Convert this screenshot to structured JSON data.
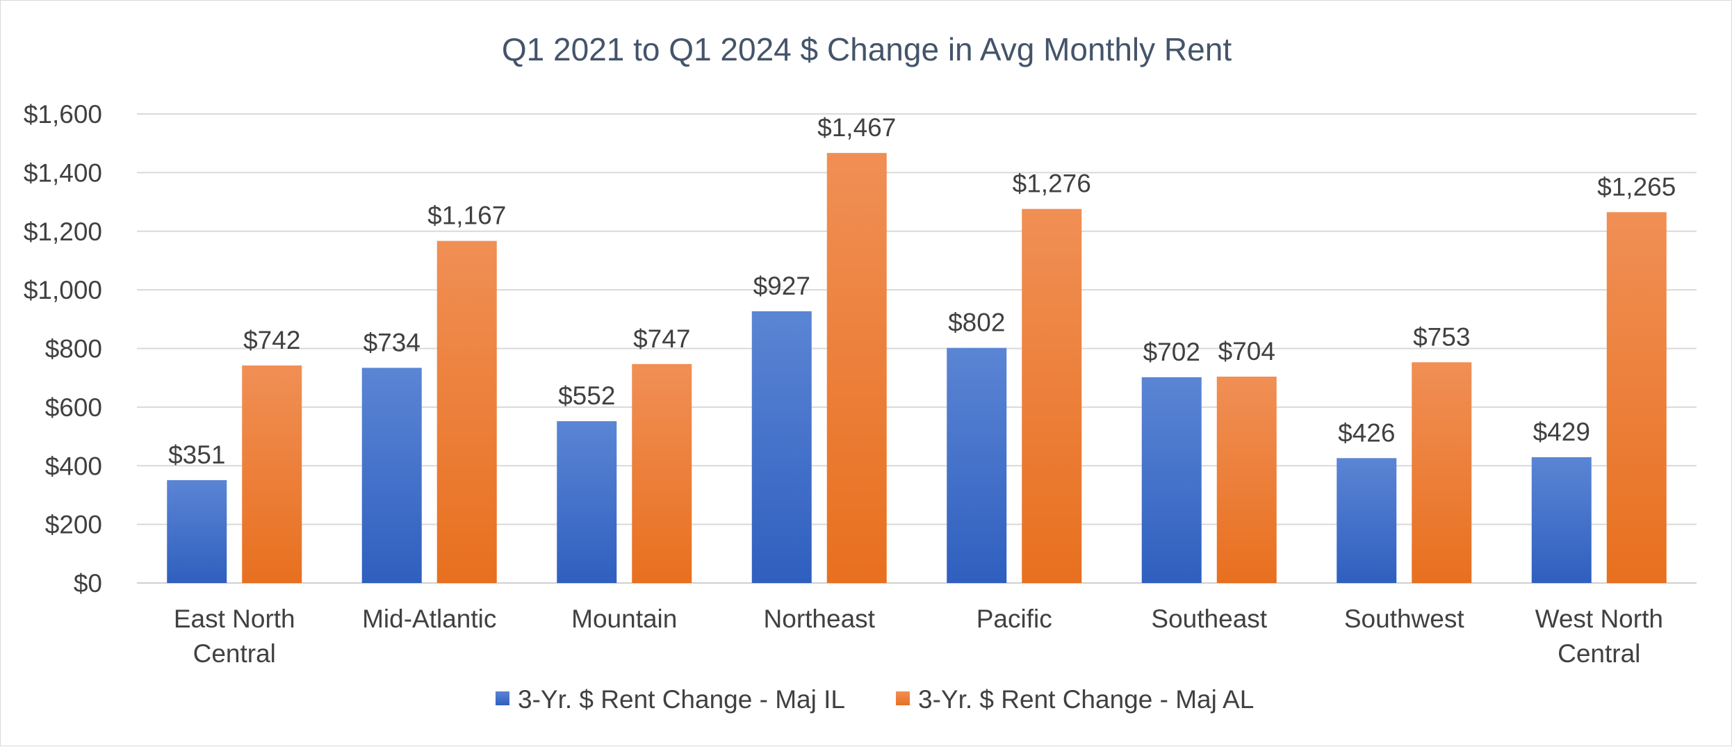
{
  "chart_data": {
    "type": "bar",
    "title": "Q1 2021 to Q1 2024 $ Change in Avg Monthly Rent",
    "xlabel": "",
    "ylabel": "",
    "ylim": [
      0,
      1600
    ],
    "yticks": [
      0,
      200,
      400,
      600,
      800,
      1000,
      1200,
      1400,
      1600
    ],
    "ytick_labels": [
      "$0",
      "$200",
      "$400",
      "$600",
      "$800",
      "$1,000",
      "$1,200",
      "$1,400",
      "$1,600"
    ],
    "grid": true,
    "legend_position": "bottom",
    "categories": [
      [
        "East North",
        "Central"
      ],
      [
        "Mid-Atlantic"
      ],
      [
        "Mountain"
      ],
      [
        "Northeast"
      ],
      [
        "Pacific"
      ],
      [
        "Southeast"
      ],
      [
        "Southwest"
      ],
      [
        "West North",
        "Central"
      ]
    ],
    "series": [
      {
        "name": "3-Yr. $ Rent Change - Maj IL",
        "color_top": "#5b85d4",
        "color_bottom": "#2f5fbf",
        "values": [
          351,
          734,
          552,
          927,
          802,
          702,
          426,
          429
        ],
        "labels": [
          "$351",
          "$734",
          "$552",
          "$927",
          "$802",
          "$702",
          "$426",
          "$429"
        ]
      },
      {
        "name": "3-Yr. $ Rent Change - Maj AL",
        "color_top": "#f08f55",
        "color_bottom": "#e8701f",
        "values": [
          742,
          1167,
          747,
          1467,
          1276,
          704,
          753,
          1265
        ],
        "labels": [
          "$742",
          "$1,167",
          "$747",
          "$1,467",
          "$1,276",
          "$704",
          "$753",
          "$1,265"
        ]
      }
    ]
  }
}
